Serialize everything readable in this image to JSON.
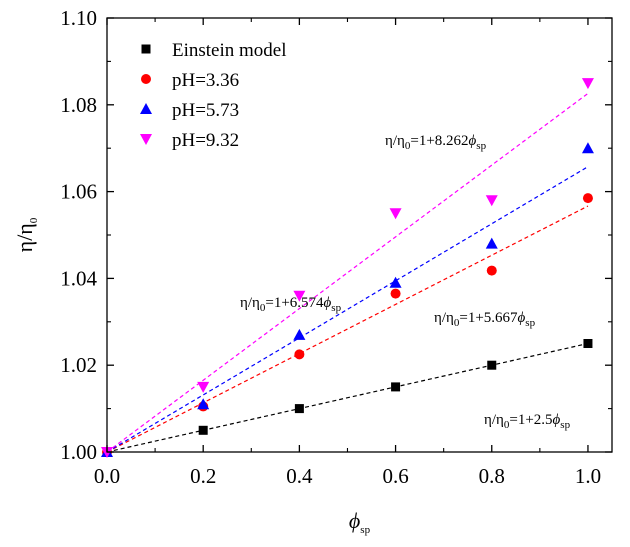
{
  "chart_data": {
    "type": "scatter",
    "title": "",
    "xlabel": {
      "main": "ϕ",
      "sub": "sp"
    },
    "ylabel": {
      "main": "η/η",
      "sub": "0"
    },
    "xlim": [
      0.0,
      1.05
    ],
    "ylim": [
      1.0,
      1.1
    ],
    "x_ticks": [
      "0.0",
      "0.2",
      "0.4",
      "0.6",
      "0.8",
      "1.0"
    ],
    "y_ticks": [
      "1.00",
      "1.02",
      "1.04",
      "1.06",
      "1.08",
      "1.10"
    ],
    "grid": false,
    "legend_position": "top-left",
    "series": [
      {
        "name": "Einstein model",
        "marker": "square",
        "color": "#000000",
        "x": [
          0.0,
          0.2,
          0.4,
          0.6,
          0.8,
          1.0
        ],
        "y": [
          1.0,
          1.005,
          1.01,
          1.015,
          1.02,
          1.025
        ],
        "fit": {
          "slope": 2.5,
          "label": {
            "pre": "η/η",
            "sub0": "0",
            "mid": "=1+2.5",
            "phi": "ϕ",
            "subsp": "sp"
          }
        }
      },
      {
        "name": "pH=3.36",
        "marker": "circle",
        "color": "#ff0000",
        "x": [
          0.0,
          0.2,
          0.4,
          0.6,
          0.8,
          1.0
        ],
        "y": [
          1.0,
          1.0105,
          1.0225,
          1.0365,
          1.0418,
          1.0585
        ],
        "fit": {
          "slope": 5.667,
          "label": {
            "pre": "η/η",
            "sub0": "0",
            "mid": "=1+5.667",
            "phi": "ϕ",
            "subsp": "sp"
          }
        }
      },
      {
        "name": "pH=5.73",
        "marker": "triangle-up",
        "color": "#0000ff",
        "x": [
          0.0,
          0.2,
          0.4,
          0.6,
          0.8,
          1.0
        ],
        "y": [
          1.0,
          1.011,
          1.027,
          1.039,
          1.048,
          1.07
        ],
        "fit": {
          "slope": 6.574,
          "label": {
            "pre": "η/η",
            "sub0": "0",
            "mid": "=1+6.574",
            "phi": "ϕ",
            "subsp": "sp"
          }
        }
      },
      {
        "name": "pH=9.32",
        "marker": "triangle-down",
        "color": "#ff00ff",
        "x": [
          0.0,
          0.2,
          0.4,
          0.6,
          0.8,
          1.0
        ],
        "y": [
          1.0,
          1.015,
          1.036,
          1.055,
          1.058,
          1.085
        ],
        "fit": {
          "slope": 8.262,
          "label": {
            "pre": "η/η",
            "sub0": "0",
            "mid": "=1+8.262",
            "phi": "ϕ",
            "subsp": "sp"
          }
        }
      }
    ]
  }
}
